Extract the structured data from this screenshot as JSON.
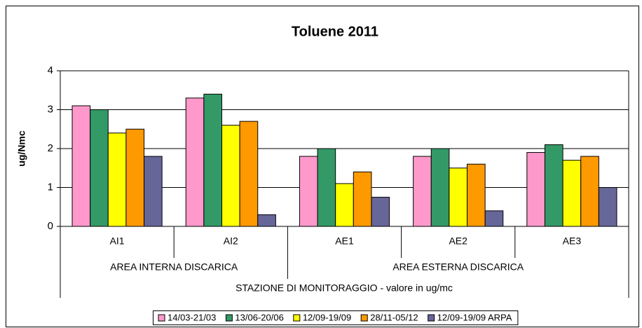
{
  "chart_data": {
    "type": "bar",
    "title": "Toluene 2011",
    "y_label": "ug/Nmc",
    "x_label": "STAZIONE DI MONITORAGGIO - valore in ug/mc",
    "categories": [
      "AI1",
      "AI2",
      "AE1",
      "AE2",
      "AE3"
    ],
    "category_groups": [
      "AREA INTERNA DISCARICA",
      "AREA ESTERNA DISCARICA"
    ],
    "series": [
      {
        "name": "14/03-21/03",
        "color": "#ff99cc",
        "values": [
          3.1,
          3.3,
          1.8,
          1.8,
          1.9
        ]
      },
      {
        "name": "13/06-20/06",
        "color": "#339966",
        "values": [
          3.0,
          3.4,
          2.0,
          2.0,
          2.1
        ]
      },
      {
        "name": "12/09-19/09",
        "color": "#ffff00",
        "values": [
          2.4,
          2.6,
          1.1,
          1.5,
          1.7
        ]
      },
      {
        "name": "28/11-05/12",
        "color": "#ff9900",
        "values": [
          2.5,
          2.7,
          1.4,
          1.6,
          1.8
        ]
      },
      {
        "name": "12/09-19/09 ARPA",
        "color": "#666699",
        "values": [
          1.8,
          0.3,
          0.75,
          0.4,
          1.0
        ]
      }
    ],
    "ylim": [
      0,
      4
    ],
    "yticks": [
      0,
      1,
      2,
      3,
      4
    ],
    "grid": true,
    "legend": "bottom"
  }
}
